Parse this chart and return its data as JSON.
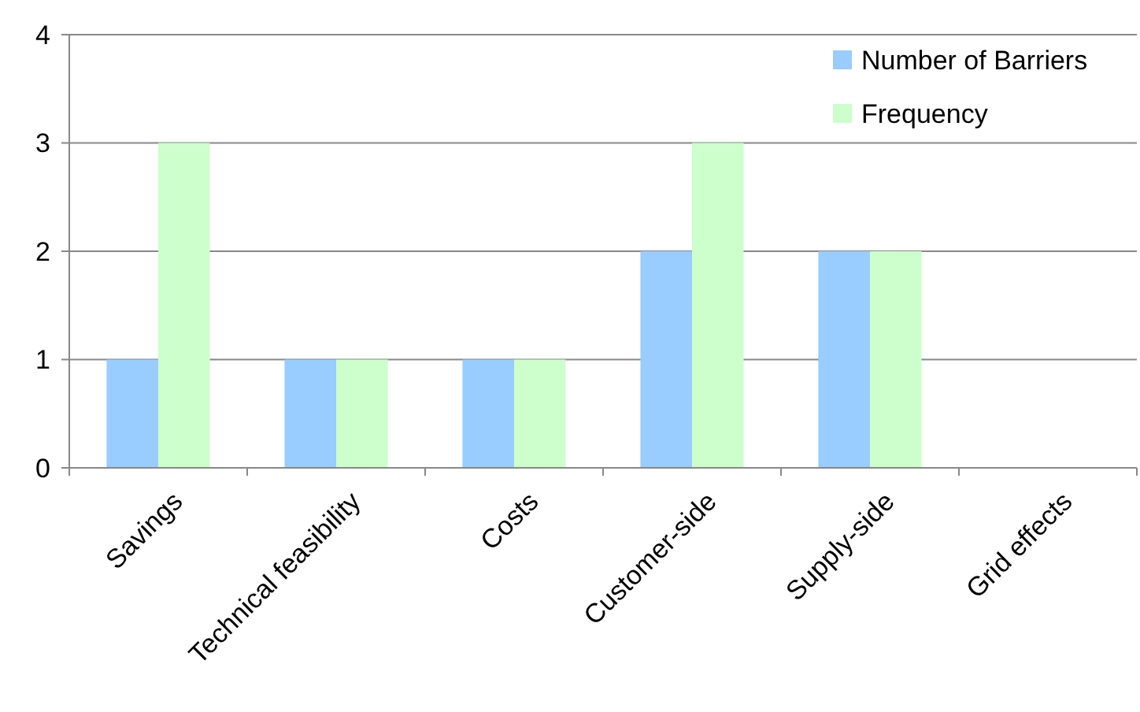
{
  "chart_data": {
    "type": "bar",
    "categories": [
      "Savings",
      "Technical feasibility",
      "Costs",
      "Customer-side",
      "Supply-side",
      "Grid effects"
    ],
    "series": [
      {
        "name": "Number of Barriers",
        "color": "#99ccff",
        "values": [
          1,
          1,
          1,
          2,
          2,
          0
        ]
      },
      {
        "name": "Frequency",
        "color": "#ccffcc",
        "values": [
          3,
          1,
          1,
          3,
          2,
          0
        ]
      }
    ],
    "ylim": [
      0,
      4
    ],
    "yticks": [
      0,
      1,
      2,
      3,
      4
    ],
    "grid": "y",
    "legend": "top right"
  }
}
